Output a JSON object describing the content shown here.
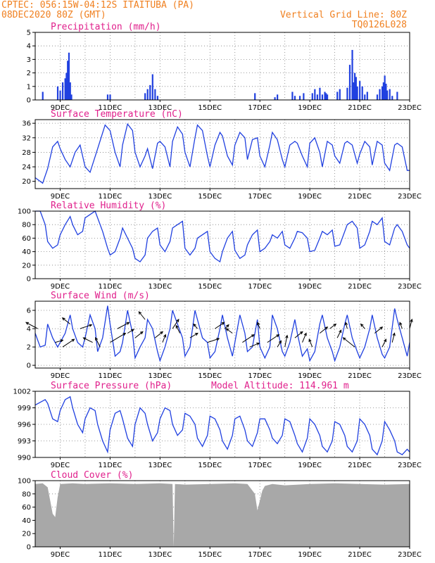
{
  "header": {
    "line1_left": "CPTEC:   056:15W-04:12S  ITAITUBA (PA)",
    "line2_left": "08DEC2020 80Z (GMT)",
    "line2_right": "Vertical Grid Line: 80Z",
    "line3_right": "TQ0126L028"
  },
  "x_labels": [
    "9DEC",
    "11DEC",
    "13DEC",
    "15DEC",
    "17DEC",
    "19DEC",
    "21DEC",
    "23DEC"
  ],
  "panels": [
    {
      "id": "precip",
      "title": "Precipitation (mm/h)",
      "ylim": [
        0,
        5
      ],
      "yticks": [
        "0",
        "1",
        "2",
        "3",
        "4",
        "5"
      ]
    },
    {
      "id": "temp",
      "title": "Surface Temperature (nC)",
      "ylim": [
        18,
        37
      ],
      "yticks": [
        "20",
        "24",
        "28",
        "32",
        "36"
      ]
    },
    {
      "id": "rh",
      "title": "Relative Humidity (%)",
      "ylim": [
        0,
        100
      ],
      "yticks": [
        "0",
        "20",
        "40",
        "60",
        "80",
        "100"
      ]
    },
    {
      "id": "wind",
      "title": "Surface Wind (m/s)",
      "ylim": [
        -0.3,
        7
      ],
      "yticks": [
        "0",
        "2",
        "4",
        "6"
      ]
    },
    {
      "id": "press",
      "title": "Surface Pressure (hPa)",
      "extra": "Model Altitude: 114.961 m",
      "ylim": [
        990,
        1002
      ],
      "yticks": [
        "990",
        "993",
        "996",
        "999",
        "1002"
      ]
    },
    {
      "id": "cloud",
      "title": "Cloud Cover (%)",
      "ylim": [
        0,
        100
      ],
      "yticks": [
        "0",
        "20",
        "40",
        "60",
        "80",
        "100"
      ]
    }
  ],
  "chart_data": [
    {
      "type": "bar",
      "title": "Precipitation (mm/h)",
      "x_days": [
        8.3,
        8.9,
        9.0,
        9.1,
        9.2,
        9.25,
        9.3,
        9.35,
        9.4,
        9.45,
        10.9,
        11.0,
        12.4,
        12.5,
        12.6,
        12.7,
        12.8,
        12.9,
        16.8,
        17.6,
        17.7,
        18.3,
        18.4,
        18.6,
        18.75,
        19.1,
        19.2,
        19.3,
        19.4,
        19.5,
        19.6,
        19.65,
        19.7,
        20.1,
        20.2,
        20.5,
        20.6,
        20.7,
        20.75,
        20.8,
        20.85,
        20.9,
        21.0,
        21.1,
        21.2,
        21.3,
        21.7,
        21.8,
        21.9,
        21.95,
        22.0,
        22.05,
        22.1,
        22.2,
        22.3,
        22.5
      ],
      "values": [
        0.6,
        1.0,
        0.7,
        1.3,
        1.6,
        2.0,
        2.9,
        3.5,
        1.3,
        0.4,
        0.4,
        0.4,
        0.5,
        0.8,
        1.1,
        1.9,
        0.8,
        0.3,
        0.5,
        0.2,
        0.4,
        0.6,
        0.3,
        0.3,
        0.5,
        0.5,
        0.8,
        0.4,
        0.9,
        0.4,
        0.6,
        0.5,
        0.4,
        0.6,
        0.8,
        0.9,
        2.6,
        3.7,
        1.3,
        2.0,
        1.7,
        1.0,
        1.4,
        1.0,
        0.4,
        0.6,
        0.4,
        0.8,
        1.0,
        1.3,
        1.8,
        1.2,
        0.7,
        0.8,
        0.3,
        0.6
      ],
      "ylim": [
        0,
        5
      ]
    },
    {
      "type": "line",
      "title": "Surface Temperature (nC)",
      "x_days": [
        8.0,
        8.3,
        8.5,
        8.7,
        8.9,
        9.0,
        9.2,
        9.4,
        9.6,
        9.8,
        10.0,
        10.2,
        10.5,
        10.8,
        11.0,
        11.2,
        11.4,
        11.5,
        11.7,
        11.9,
        12.0,
        12.2,
        12.4,
        12.5,
        12.7,
        12.9,
        13.0,
        13.2,
        13.4,
        13.5,
        13.7,
        13.9,
        14.0,
        14.2,
        14.4,
        14.5,
        14.7,
        14.9,
        15.0,
        15.2,
        15.4,
        15.5,
        15.7,
        15.9,
        16.0,
        16.2,
        16.4,
        16.5,
        16.7,
        16.9,
        17.0,
        17.2,
        17.4,
        17.5,
        17.7,
        17.9,
        18.0,
        18.2,
        18.4,
        18.5,
        18.7,
        18.9,
        19.0,
        19.2,
        19.4,
        19.5,
        19.7,
        19.9,
        20.0,
        20.2,
        20.4,
        20.5,
        20.7,
        20.9,
        21.0,
        21.2,
        21.4,
        21.5,
        21.7,
        21.9,
        22.0,
        22.2,
        22.4,
        22.5,
        22.7,
        22.9,
        23.0
      ],
      "values": [
        21.0,
        19.5,
        23.5,
        29.5,
        31.0,
        29.0,
        26.0,
        24.0,
        28.0,
        30.0,
        24.0,
        22.5,
        29.0,
        35.5,
        34.0,
        28.0,
        24.0,
        30.0,
        35.8,
        34.0,
        28.0,
        24.0,
        27.0,
        29.0,
        23.5,
        30.5,
        31.0,
        29.5,
        24.0,
        31.0,
        35.0,
        33.0,
        28.0,
        24.0,
        32.0,
        35.5,
        34.0,
        27.0,
        24.0,
        30.0,
        33.5,
        32.5,
        27.0,
        24.5,
        30.0,
        33.5,
        32.0,
        26.0,
        31.5,
        32.0,
        27.0,
        24.0,
        30.0,
        33.5,
        31.5,
        26.0,
        24.0,
        30.0,
        31.0,
        30.5,
        27.0,
        24.0,
        30.5,
        32.0,
        28.0,
        24.0,
        31.0,
        30.0,
        27.0,
        25.0,
        30.5,
        31.0,
        30.0,
        25.0,
        27.5,
        31.0,
        29.5,
        24.5,
        31.0,
        30.0,
        25.0,
        23.0,
        30.0,
        30.5,
        29.5,
        23.0,
        23.0
      ]
    },
    {
      "type": "line",
      "title": "Relative Humidity (%)",
      "x_days": [
        8.0,
        8.2,
        8.4,
        8.5,
        8.7,
        8.9,
        9.0,
        9.2,
        9.4,
        9.5,
        9.7,
        9.9,
        10.0,
        10.2,
        10.4,
        10.5,
        10.7,
        10.9,
        11.0,
        11.2,
        11.4,
        11.5,
        11.7,
        11.9,
        12.0,
        12.2,
        12.4,
        12.5,
        12.7,
        12.9,
        13.0,
        13.2,
        13.4,
        13.5,
        13.7,
        13.9,
        14.0,
        14.2,
        14.4,
        14.5,
        14.7,
        14.9,
        15.0,
        15.2,
        15.4,
        15.5,
        15.7,
        15.9,
        16.0,
        16.2,
        16.4,
        16.5,
        16.7,
        16.9,
        17.0,
        17.2,
        17.4,
        17.5,
        17.7,
        17.9,
        18.0,
        18.2,
        18.4,
        18.5,
        18.7,
        18.9,
        19.0,
        19.2,
        19.4,
        19.5,
        19.7,
        19.9,
        20.0,
        20.2,
        20.4,
        20.5,
        20.7,
        20.9,
        21.0,
        21.2,
        21.4,
        21.5,
        21.7,
        21.9,
        22.0,
        22.2,
        22.4,
        22.5,
        22.7,
        22.9,
        23.0
      ],
      "values": [
        100,
        100,
        80,
        55,
        45,
        50,
        65,
        80,
        92,
        80,
        65,
        70,
        90,
        95,
        100,
        90,
        70,
        45,
        35,
        40,
        60,
        75,
        60,
        45,
        30,
        25,
        35,
        60,
        70,
        75,
        50,
        40,
        55,
        75,
        80,
        85,
        45,
        35,
        45,
        60,
        65,
        70,
        40,
        30,
        25,
        40,
        60,
        70,
        42,
        30,
        35,
        50,
        65,
        72,
        40,
        45,
        55,
        65,
        60,
        70,
        50,
        45,
        60,
        70,
        68,
        60,
        40,
        42,
        60,
        70,
        65,
        72,
        48,
        50,
        70,
        80,
        85,
        75,
        45,
        50,
        70,
        85,
        80,
        90,
        55,
        50,
        75,
        80,
        70,
        50,
        45
      ]
    },
    {
      "type": "line",
      "title": "Surface Wind (m/s)",
      "x_days": [
        8.0,
        8.2,
        8.4,
        8.5,
        8.7,
        8.9,
        9.0,
        9.2,
        9.4,
        9.5,
        9.7,
        9.9,
        10.0,
        10.2,
        10.4,
        10.5,
        10.7,
        10.9,
        11.0,
        11.2,
        11.4,
        11.5,
        11.7,
        11.9,
        12.0,
        12.2,
        12.4,
        12.5,
        12.7,
        12.9,
        13.0,
        13.2,
        13.4,
        13.5,
        13.7,
        13.9,
        14.0,
        14.2,
        14.4,
        14.5,
        14.7,
        14.9,
        15.0,
        15.2,
        15.4,
        15.5,
        15.7,
        15.9,
        16.0,
        16.2,
        16.4,
        16.5,
        16.7,
        16.9,
        17.0,
        17.2,
        17.4,
        17.5,
        17.7,
        17.9,
        18.0,
        18.2,
        18.4,
        18.5,
        18.7,
        18.9,
        19.0,
        19.2,
        19.4,
        19.5,
        19.7,
        19.9,
        20.0,
        20.2,
        20.4,
        20.5,
        20.7,
        20.9,
        21.0,
        21.2,
        21.4,
        21.5,
        21.7,
        21.9,
        22.0,
        22.2,
        22.4,
        22.5,
        22.7,
        22.9,
        23.0
      ],
      "values": [
        3.5,
        2.0,
        2.2,
        4.5,
        3.0,
        2.0,
        2.5,
        3.5,
        5.5,
        4.0,
        2.5,
        2.0,
        3.0,
        5.5,
        4.0,
        1.5,
        3.0,
        6.5,
        4.5,
        1.0,
        1.5,
        2.5,
        6.0,
        3.5,
        0.8,
        2.0,
        3.0,
        5.0,
        4.0,
        1.5,
        0.5,
        2.0,
        4.0,
        6.0,
        4.5,
        3.0,
        1.0,
        2.0,
        6.0,
        5.0,
        3.0,
        2.5,
        0.8,
        1.5,
        4.0,
        5.5,
        3.0,
        1.0,
        2.5,
        5.5,
        3.5,
        1.5,
        2.0,
        5.0,
        2.0,
        0.8,
        2.0,
        5.5,
        4.0,
        1.5,
        1.0,
        2.5,
        5.0,
        3.5,
        1.0,
        1.8,
        0.5,
        1.5,
        4.5,
        5.5,
        3.0,
        1.5,
        0.5,
        2.0,
        4.5,
        5.5,
        3.0,
        1.5,
        0.8,
        2.0,
        4.0,
        5.5,
        3.0,
        1.2,
        0.8,
        2.0,
        6.2,
        5.0,
        3.0,
        1.0,
        2.5
      ]
    },
    {
      "type": "line",
      "title": "Surface Pressure (hPa)",
      "x_days": [
        8.0,
        8.2,
        8.4,
        8.5,
        8.7,
        8.9,
        9.0,
        9.2,
        9.4,
        9.5,
        9.7,
        9.9,
        10.0,
        10.2,
        10.4,
        10.5,
        10.7,
        10.9,
        11.0,
        11.2,
        11.4,
        11.5,
        11.7,
        11.9,
        12.0,
        12.2,
        12.4,
        12.5,
        12.7,
        12.9,
        13.0,
        13.2,
        13.4,
        13.5,
        13.7,
        13.9,
        14.0,
        14.2,
        14.4,
        14.5,
        14.7,
        14.9,
        15.0,
        15.2,
        15.4,
        15.5,
        15.7,
        15.9,
        16.0,
        16.2,
        16.4,
        16.5,
        16.7,
        16.9,
        17.0,
        17.2,
        17.4,
        17.5,
        17.7,
        17.9,
        18.0,
        18.2,
        18.4,
        18.5,
        18.7,
        18.9,
        19.0,
        19.2,
        19.4,
        19.5,
        19.7,
        19.9,
        20.0,
        20.2,
        20.4,
        20.5,
        20.7,
        20.9,
        21.0,
        21.2,
        21.4,
        21.5,
        21.7,
        21.9,
        22.0,
        22.2,
        22.4,
        22.5,
        22.7,
        22.9,
        23.0
      ],
      "values": [
        999.5,
        1000.0,
        1000.5,
        999.8,
        997.0,
        996.5,
        998.5,
        1000.5,
        1001.0,
        999.0,
        996.0,
        994.5,
        997.0,
        999.0,
        998.5,
        996.0,
        993.0,
        991.0,
        995.0,
        998.0,
        998.5,
        997.0,
        993.5,
        992.0,
        996.0,
        999.0,
        998.0,
        996.0,
        993.0,
        994.5,
        997.0,
        999.0,
        998.5,
        996.0,
        994.0,
        995.0,
        998.0,
        997.5,
        996.0,
        993.5,
        992.0,
        994.0,
        997.5,
        997.0,
        995.0,
        993.0,
        991.5,
        994.0,
        997.0,
        997.5,
        995.0,
        993.0,
        992.0,
        994.5,
        997.0,
        997.0,
        995.0,
        993.5,
        992.5,
        994.0,
        997.0,
        996.5,
        994.0,
        992.5,
        991.0,
        993.5,
        997.0,
        996.0,
        994.0,
        992.0,
        991.0,
        993.0,
        996.5,
        996.0,
        994.0,
        992.0,
        991.0,
        993.0,
        997.0,
        996.0,
        994.0,
        991.5,
        990.5,
        993.0,
        996.5,
        995.0,
        993.0,
        991.0,
        990.5,
        991.5,
        991.0
      ]
    },
    {
      "type": "area",
      "title": "Cloud Cover (%)",
      "x_days": [
        8.0,
        8.3,
        8.5,
        8.6,
        8.7,
        8.8,
        8.9,
        9.0,
        9.5,
        10.0,
        11.0,
        12.0,
        13.0,
        13.5,
        13.55,
        13.6,
        14.0,
        15.0,
        16.0,
        16.5,
        16.8,
        16.9,
        17.0,
        17.1,
        17.2,
        17.5,
        18.0,
        19.0,
        20.0,
        21.0,
        22.0,
        23.0
      ],
      "values": [
        95,
        96,
        90,
        70,
        50,
        45,
        75,
        95,
        96,
        95,
        96,
        95,
        96,
        95,
        0,
        95,
        94,
        95,
        96,
        95,
        80,
        55,
        70,
        85,
        92,
        95,
        93,
        95,
        96,
        95,
        94,
        95
      ],
      "ylim": [
        0,
        100
      ]
    }
  ],
  "wind_vectors": {
    "x_days": [
      8.1,
      8.8,
      9.1,
      9.4,
      9.8,
      10.3,
      10.6,
      11.0,
      11.3,
      11.7,
      12.0,
      12.4,
      12.8,
      13.1,
      13.5,
      13.8,
      14.2,
      14.5,
      14.9,
      15.2,
      15.6,
      15.9,
      16.3,
      16.6,
      17.0,
      17.3,
      17.7,
      18.0,
      18.4,
      18.7,
      19.1,
      19.4,
      19.8,
      20.1,
      20.5,
      20.8,
      21.2,
      21.6,
      21.9,
      22.3,
      22.7,
      23.0
    ],
    "y": [
      4.0,
      2.5,
      2.0,
      4.5,
      4.0,
      2.5,
      2.0,
      2.5,
      4.0,
      3.5,
      3.0,
      5.0,
      3.0,
      2.5,
      4.0,
      3.5,
      3.0,
      4.0,
      2.5,
      4.0,
      4.0,
      3.5,
      2.5,
      2.0,
      4.0,
      2.5,
      2.0,
      2.0,
      3.0,
      2.5,
      2.0,
      3.5,
      4.0,
      3.0,
      4.0,
      2.0,
      4.0,
      3.5,
      2.0,
      2.5,
      4.0,
      4.0
    ],
    "u": [
      -1.5,
      1.0,
      1.5,
      -1.0,
      1.5,
      -1.2,
      -0.6,
      2.0,
      1.5,
      0.8,
      1.0,
      -0.8,
      1.0,
      0.4,
      0.8,
      -0.5,
      1.0,
      -0.5,
      1.5,
      1.2,
      0.5,
      -0.8,
      1.5,
      1.2,
      -0.3,
      1.5,
      0.5,
      0.3,
      1.0,
      0.5,
      -0.4,
      1.0,
      0.8,
      0.5,
      -0.2,
      -1.5,
      -0.5,
      1.0,
      0.5,
      0.3,
      -0.3,
      0.3
    ],
    "v": [
      0.8,
      0.3,
      1.0,
      0.8,
      0.5,
      0.6,
      1.2,
      1.2,
      0.8,
      0.5,
      0.8,
      1.0,
      0.8,
      1.0,
      1.2,
      1.0,
      0.6,
      0.6,
      0.5,
      0.8,
      0.5,
      0.6,
      1.0,
      0.5,
      0.8,
      1.0,
      0.8,
      1.5,
      0.8,
      1.2,
      1.0,
      0.8,
      0.6,
      1.0,
      0.8,
      1.2,
      0.6,
      0.8,
      1.0,
      1.2,
      0.8,
      1.2
    ]
  },
  "colors": {
    "header": "#f08020",
    "panel_title": "#e0208c",
    "series": "#2040e0",
    "cloud_fill": "#a8a8a8",
    "grid": "#808080"
  }
}
